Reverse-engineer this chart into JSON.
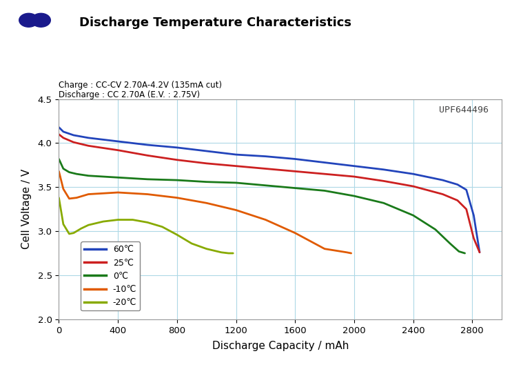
{
  "title": "Discharge Temperature Characteristics",
  "subtitle_line1": "Charge : CC-CV 2.70A-4.2V (135mA cut)",
  "subtitle_line2": "Discharge : CC 2.70A (E.V. : 2.75V)",
  "watermark": "UPF644496",
  "xlabel": "Discharge Capacity / mAh",
  "ylabel": "Cell Voltage / V",
  "xlim": [
    0,
    3000
  ],
  "ylim": [
    2.0,
    4.5
  ],
  "xticks": [
    0,
    400,
    800,
    1200,
    1600,
    2000,
    2400,
    2800
  ],
  "yticks": [
    2.0,
    2.5,
    3.0,
    3.5,
    4.0,
    4.5
  ],
  "background_color": "#ffffff",
  "grid_color": "#add8e6",
  "curves": {
    "60C": {
      "color": "#2244bb",
      "label": "60℃",
      "linewidth": 2.0,
      "x": [
        0,
        30,
        100,
        200,
        400,
        600,
        800,
        1000,
        1200,
        1400,
        1600,
        1800,
        2000,
        2200,
        2400,
        2600,
        2700,
        2760,
        2810,
        2850
      ],
      "y": [
        4.18,
        4.13,
        4.09,
        4.06,
        4.02,
        3.98,
        3.95,
        3.91,
        3.87,
        3.85,
        3.82,
        3.78,
        3.74,
        3.7,
        3.65,
        3.58,
        3.53,
        3.47,
        3.18,
        2.76
      ]
    },
    "25C": {
      "color": "#cc2020",
      "label": "25℃",
      "linewidth": 2.0,
      "x": [
        0,
        30,
        100,
        200,
        400,
        600,
        800,
        1000,
        1200,
        1400,
        1600,
        1800,
        2000,
        2200,
        2400,
        2600,
        2700,
        2760,
        2810,
        2850
      ],
      "y": [
        4.1,
        4.06,
        4.01,
        3.97,
        3.92,
        3.86,
        3.81,
        3.77,
        3.74,
        3.71,
        3.68,
        3.65,
        3.62,
        3.57,
        3.51,
        3.42,
        3.35,
        3.25,
        2.92,
        2.76
      ]
    },
    "0C": {
      "color": "#1a7a1a",
      "label": "0℃",
      "linewidth": 2.0,
      "x": [
        0,
        30,
        70,
        120,
        200,
        400,
        600,
        800,
        1000,
        1200,
        1400,
        1600,
        1800,
        2000,
        2200,
        2400,
        2550,
        2650,
        2710,
        2750
      ],
      "y": [
        3.82,
        3.71,
        3.67,
        3.65,
        3.63,
        3.61,
        3.59,
        3.58,
        3.56,
        3.55,
        3.52,
        3.49,
        3.46,
        3.4,
        3.32,
        3.18,
        3.02,
        2.86,
        2.77,
        2.75
      ]
    },
    "-10C": {
      "color": "#e05a00",
      "label": "-10℃",
      "linewidth": 2.0,
      "x": [
        0,
        30,
        70,
        120,
        200,
        400,
        600,
        800,
        1000,
        1200,
        1400,
        1600,
        1800,
        1950,
        1980
      ],
      "y": [
        3.68,
        3.48,
        3.37,
        3.38,
        3.42,
        3.44,
        3.42,
        3.38,
        3.32,
        3.24,
        3.13,
        2.98,
        2.8,
        2.76,
        2.75
      ]
    },
    "-20C": {
      "color": "#88aa00",
      "label": "-20℃",
      "linewidth": 2.0,
      "x": [
        0,
        30,
        70,
        100,
        150,
        200,
        300,
        400,
        500,
        600,
        700,
        800,
        900,
        1000,
        1100,
        1150,
        1180
      ],
      "y": [
        3.38,
        3.08,
        2.97,
        2.98,
        3.03,
        3.07,
        3.11,
        3.13,
        3.13,
        3.1,
        3.05,
        2.96,
        2.86,
        2.8,
        2.76,
        2.75,
        2.75
      ]
    }
  },
  "icon_color": "#1a1a8c"
}
